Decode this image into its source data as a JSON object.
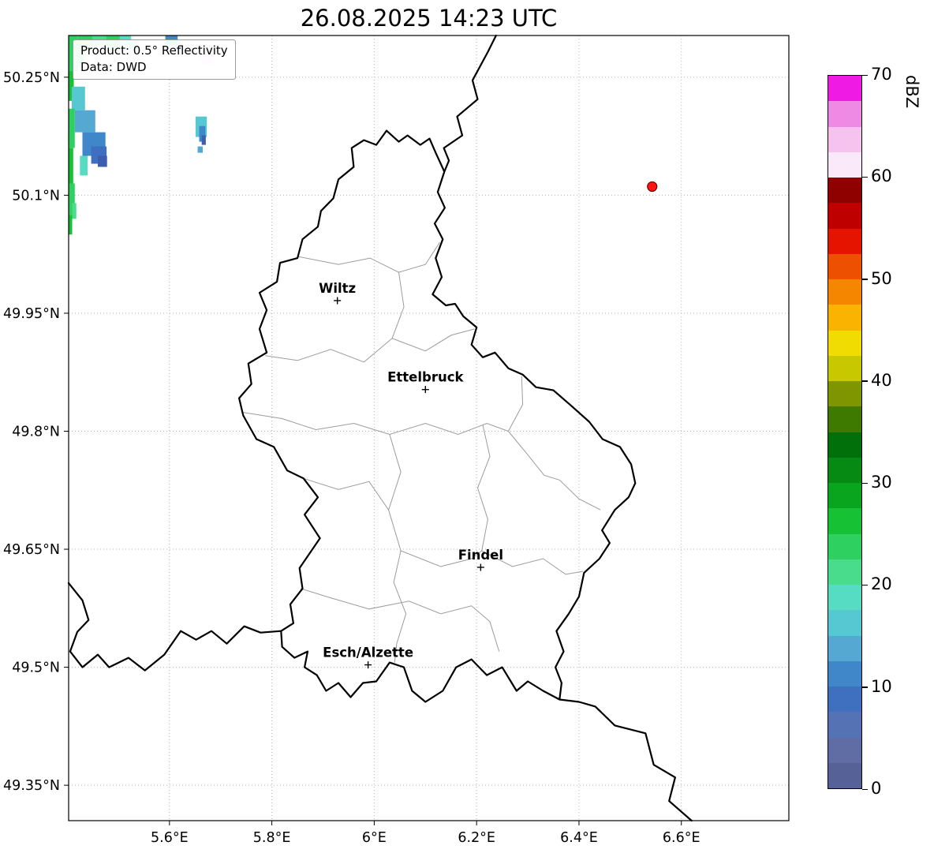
{
  "title": "26.08.2025 14:23 UTC",
  "info_box": {
    "product": "Product: 0.5° Reflectivity",
    "source": "Data: DWD"
  },
  "colorbar": {
    "label": "dBZ",
    "min": 0,
    "max": 70,
    "ticks": [
      0,
      10,
      20,
      30,
      40,
      50,
      60,
      70
    ],
    "segments": [
      {
        "from": 0,
        "to": 2.5,
        "color": "#566198"
      },
      {
        "from": 2.5,
        "to": 5,
        "color": "#5f6da4"
      },
      {
        "from": 5,
        "to": 7.5,
        "color": "#5472b4"
      },
      {
        "from": 7.5,
        "to": 10,
        "color": "#3f6fbf"
      },
      {
        "from": 10,
        "to": 12.5,
        "color": "#3f87c8"
      },
      {
        "from": 12.5,
        "to": 15,
        "color": "#55a8d2"
      },
      {
        "from": 15,
        "to": 17.5,
        "color": "#55c8d2"
      },
      {
        "from": 17.5,
        "to": 20,
        "color": "#55dcc3"
      },
      {
        "from": 20,
        "to": 22.5,
        "color": "#49dc8c"
      },
      {
        "from": 22.5,
        "to": 25,
        "color": "#2ed05f"
      },
      {
        "from": 25,
        "to": 27.5,
        "color": "#16c233"
      },
      {
        "from": 27.5,
        "to": 30,
        "color": "#0aa51f"
      },
      {
        "from": 30,
        "to": 32.5,
        "color": "#068a14"
      },
      {
        "from": 32.5,
        "to": 35,
        "color": "#02700a"
      },
      {
        "from": 35,
        "to": 37.5,
        "color": "#3f7a00"
      },
      {
        "from": 37.5,
        "to": 40,
        "color": "#7f9600"
      },
      {
        "from": 40,
        "to": 42.5,
        "color": "#c8c800"
      },
      {
        "from": 42.5,
        "to": 45,
        "color": "#f0dc00"
      },
      {
        "from": 45,
        "to": 47.5,
        "color": "#fab400"
      },
      {
        "from": 47.5,
        "to": 50,
        "color": "#f58700"
      },
      {
        "from": 50,
        "to": 52.5,
        "color": "#ed5000"
      },
      {
        "from": 52.5,
        "to": 55,
        "color": "#e41400"
      },
      {
        "from": 55,
        "to": 57.5,
        "color": "#be0000"
      },
      {
        "from": 57.5,
        "to": 60,
        "color": "#8f0000"
      },
      {
        "from": 60,
        "to": 62.5,
        "color": "#f9e9f9"
      },
      {
        "from": 62.5,
        "to": 65,
        "color": "#f5c3ee"
      },
      {
        "from": 65,
        "to": 67.5,
        "color": "#ee8ae4"
      },
      {
        "from": 67.5,
        "to": 70,
        "color": "#ef1ae4"
      }
    ]
  },
  "map": {
    "lon_range": [
      5.403,
      6.81
    ],
    "lat_range": [
      49.305,
      50.303
    ],
    "style": {
      "grid": "#b5b5b5",
      "district_border": "#9c9c9c",
      "country_border": "#000000"
    },
    "xticks": [
      {
        "value": 5.6,
        "label": "5.6°E"
      },
      {
        "value": 5.8,
        "label": "5.8°E"
      },
      {
        "value": 6.0,
        "label": "6°E"
      },
      {
        "value": 6.2,
        "label": "6.2°E"
      },
      {
        "value": 6.4,
        "label": "6.4°E"
      },
      {
        "value": 6.6,
        "label": "6.6°E"
      }
    ],
    "yticks": [
      {
        "value": 50.25,
        "label": "50.25°N"
      },
      {
        "value": 50.1,
        "label": "50.1°N"
      },
      {
        "value": 49.95,
        "label": "49.95°N"
      },
      {
        "value": 49.8,
        "label": "49.8°N"
      },
      {
        "value": 49.65,
        "label": "49.65°N"
      },
      {
        "value": 49.5,
        "label": "49.5°N"
      },
      {
        "value": 49.35,
        "label": "49.35°N"
      }
    ],
    "cities": [
      {
        "name": "Wiltz",
        "lon": 5.928,
        "lat": 49.966
      },
      {
        "name": "Ettelbruck",
        "lon": 6.1,
        "lat": 49.853
      },
      {
        "name": "Findel",
        "lon": 6.208,
        "lat": 49.627
      },
      {
        "name": "Esch/Alzette",
        "lon": 5.988,
        "lat": 49.503
      }
    ],
    "radar_site": {
      "lon": 6.543,
      "lat": 50.111,
      "fill": "#ff1414",
      "edge": "#6e0000"
    },
    "borders": {
      "country": [
        [
          [
            6.024,
            50.182
          ],
          [
            6.048,
            50.168
          ],
          [
            6.065,
            50.176
          ],
          [
            6.09,
            50.164
          ],
          [
            6.108,
            50.172
          ],
          [
            6.12,
            50.154
          ],
          [
            6.137,
            50.13
          ],
          [
            6.124,
            50.104
          ],
          [
            6.138,
            50.084
          ],
          [
            6.118,
            50.064
          ],
          [
            6.134,
            50.044
          ],
          [
            6.12,
            50.02
          ],
          [
            6.132,
            49.996
          ],
          [
            6.114,
            49.974
          ],
          [
            6.14,
            49.96
          ],
          [
            6.158,
            49.962
          ],
          [
            6.174,
            49.946
          ],
          [
            6.2,
            49.932
          ],
          [
            6.19,
            49.91
          ],
          [
            6.212,
            49.894
          ],
          [
            6.236,
            49.9
          ],
          [
            6.262,
            49.88
          ],
          [
            6.29,
            49.872
          ],
          [
            6.316,
            49.856
          ],
          [
            6.35,
            49.852
          ],
          [
            6.382,
            49.834
          ],
          [
            6.42,
            49.812
          ],
          [
            6.446,
            49.79
          ],
          [
            6.48,
            49.78
          ],
          [
            6.502,
            49.758
          ],
          [
            6.51,
            49.734
          ],
          [
            6.497,
            49.716
          ],
          [
            6.47,
            49.7
          ],
          [
            6.445,
            49.674
          ],
          [
            6.46,
            49.658
          ],
          [
            6.44,
            49.638
          ],
          [
            6.41,
            49.62
          ],
          [
            6.4,
            49.59
          ],
          [
            6.38,
            49.568
          ],
          [
            6.356,
            49.546
          ],
          [
            6.37,
            49.52
          ],
          [
            6.354,
            49.5
          ],
          [
            6.366,
            49.48
          ],
          [
            6.362,
            49.459
          ],
          [
            6.33,
            49.47
          ],
          [
            6.3,
            49.482
          ],
          [
            6.278,
            49.47
          ],
          [
            6.25,
            49.5
          ],
          [
            6.22,
            49.49
          ],
          [
            6.19,
            49.51
          ],
          [
            6.16,
            49.5
          ],
          [
            6.134,
            49.47
          ],
          [
            6.1,
            49.456
          ],
          [
            6.074,
            49.47
          ],
          [
            6.058,
            49.5
          ],
          [
            6.03,
            49.506
          ],
          [
            6.004,
            49.482
          ],
          [
            5.978,
            49.48
          ],
          [
            5.954,
            49.462
          ],
          [
            5.93,
            49.48
          ],
          [
            5.906,
            49.47
          ],
          [
            5.888,
            49.49
          ],
          [
            5.864,
            49.5
          ],
          [
            5.87,
            49.52
          ],
          [
            5.844,
            49.512
          ],
          [
            5.82,
            49.526
          ],
          [
            5.818,
            49.546
          ],
          [
            5.842,
            49.556
          ],
          [
            5.836,
            49.58
          ],
          [
            5.86,
            49.6
          ],
          [
            5.854,
            49.626
          ],
          [
            5.894,
            49.664
          ],
          [
            5.864,
            49.694
          ],
          [
            5.89,
            49.716
          ],
          [
            5.862,
            49.74
          ],
          [
            5.83,
            49.75
          ],
          [
            5.804,
            49.78
          ],
          [
            5.77,
            49.79
          ],
          [
            5.744,
            49.82
          ],
          [
            5.736,
            49.842
          ],
          [
            5.76,
            49.86
          ],
          [
            5.754,
            49.886
          ],
          [
            5.79,
            49.9
          ],
          [
            5.776,
            49.93
          ],
          [
            5.79,
            49.954
          ],
          [
            5.776,
            49.976
          ],
          [
            5.81,
            49.99
          ],
          [
            5.816,
            50.014
          ],
          [
            5.85,
            50.02
          ],
          [
            5.86,
            50.044
          ],
          [
            5.89,
            50.06
          ],
          [
            5.896,
            50.08
          ],
          [
            5.92,
            50.096
          ],
          [
            5.93,
            50.12
          ],
          [
            5.96,
            50.136
          ],
          [
            5.956,
            50.16
          ],
          [
            5.98,
            50.17
          ],
          [
            6.004,
            50.164
          ],
          [
            6.024,
            50.182
          ]
        ],
        [
          [
            6.238,
            50.303
          ],
          [
            6.222,
            50.282
          ],
          [
            6.192,
            50.246
          ],
          [
            6.202,
            50.222
          ],
          [
            6.162,
            50.2
          ],
          [
            6.172,
            50.176
          ],
          [
            6.136,
            50.16
          ],
          [
            6.146,
            50.144
          ],
          [
            6.137,
            50.13
          ]
        ],
        [
          [
            5.403,
            49.607
          ],
          [
            5.43,
            49.585
          ],
          [
            5.442,
            49.56
          ],
          [
            5.42,
            49.545
          ],
          [
            5.406,
            49.52
          ],
          [
            5.43,
            49.5
          ],
          [
            5.46,
            49.516
          ],
          [
            5.482,
            49.5
          ],
          [
            5.52,
            49.512
          ],
          [
            5.552,
            49.496
          ],
          [
            5.59,
            49.516
          ],
          [
            5.622,
            49.546
          ],
          [
            5.652,
            49.535
          ],
          [
            5.682,
            49.546
          ],
          [
            5.712,
            49.53
          ],
          [
            5.746,
            49.552
          ],
          [
            5.778,
            49.544
          ],
          [
            5.818,
            49.546
          ]
        ],
        [
          [
            6.362,
            49.459
          ],
          [
            6.4,
            49.456
          ],
          [
            6.432,
            49.45
          ],
          [
            6.47,
            49.426
          ],
          [
            6.53,
            49.416
          ],
          [
            6.546,
            49.376
          ],
          [
            6.588,
            49.36
          ],
          [
            6.576,
            49.33
          ],
          [
            6.62,
            49.305
          ]
        ]
      ],
      "districts": [
        [
          [
            5.852,
            50.022
          ],
          [
            5.93,
            50.012
          ],
          [
            5.992,
            50.02
          ],
          [
            6.048,
            50.002
          ],
          [
            6.1,
            50.012
          ],
          [
            6.128,
            50.04
          ]
        ],
        [
          [
            5.787,
            49.896
          ],
          [
            5.85,
            49.89
          ],
          [
            5.915,
            49.904
          ],
          [
            5.98,
            49.888
          ],
          [
            6.035,
            49.918
          ],
          [
            6.1,
            49.902
          ],
          [
            6.15,
            49.922
          ],
          [
            6.196,
            49.93
          ]
        ],
        [
          [
            6.048,
            50.002
          ],
          [
            6.058,
            49.958
          ],
          [
            6.035,
            49.918
          ]
        ],
        [
          [
            5.744,
            49.824
          ],
          [
            5.82,
            49.816
          ],
          [
            5.886,
            49.802
          ],
          [
            5.96,
            49.81
          ],
          [
            6.03,
            49.796
          ],
          [
            6.1,
            49.81
          ],
          [
            6.164,
            49.796
          ],
          [
            6.22,
            49.81
          ],
          [
            6.262,
            49.8
          ]
        ],
        [
          [
            6.262,
            49.8
          ],
          [
            6.29,
            49.834
          ],
          [
            6.288,
            49.87
          ]
        ],
        [
          [
            6.262,
            49.8
          ],
          [
            6.3,
            49.77
          ],
          [
            6.332,
            49.744
          ],
          [
            6.362,
            49.738
          ],
          [
            6.4,
            49.714
          ],
          [
            6.442,
            49.7
          ]
        ],
        [
          [
            6.03,
            49.796
          ],
          [
            6.052,
            49.748
          ],
          [
            6.028,
            49.7
          ],
          [
            6.052,
            49.648
          ],
          [
            6.038,
            49.608
          ],
          [
            6.062,
            49.568
          ],
          [
            6.044,
            49.53
          ],
          [
            6.04,
            49.506
          ]
        ],
        [
          [
            6.212,
            49.808
          ],
          [
            6.226,
            49.768
          ],
          [
            6.202,
            49.728
          ],
          [
            6.222,
            49.688
          ],
          [
            6.21,
            49.648
          ]
        ],
        [
          [
            6.21,
            49.648
          ],
          [
            6.27,
            49.628
          ],
          [
            6.33,
            49.638
          ],
          [
            6.374,
            49.618
          ],
          [
            6.408,
            49.622
          ]
        ],
        [
          [
            6.052,
            49.648
          ],
          [
            6.13,
            49.628
          ],
          [
            6.19,
            49.638
          ],
          [
            6.21,
            49.648
          ]
        ],
        [
          [
            5.856,
            49.6
          ],
          [
            5.916,
            49.588
          ],
          [
            5.99,
            49.574
          ],
          [
            6.068,
            49.584
          ],
          [
            6.13,
            49.568
          ],
          [
            6.19,
            49.578
          ],
          [
            6.226,
            49.558
          ],
          [
            6.244,
            49.52
          ]
        ],
        [
          [
            5.862,
            49.74
          ],
          [
            5.93,
            49.726
          ],
          [
            5.99,
            49.736
          ],
          [
            6.028,
            49.7
          ]
        ]
      ]
    },
    "echoes": [
      [
        5.403,
        50.303,
        0.018,
        0.045,
        "#2ed05f"
      ],
      [
        5.403,
        50.258,
        0.01,
        0.038,
        "#16c233"
      ],
      [
        5.414,
        50.285,
        0.02,
        0.022,
        "#49dc8c"
      ],
      [
        5.421,
        50.303,
        0.03,
        0.018,
        "#2ed05f"
      ],
      [
        5.449,
        50.303,
        0.028,
        0.012,
        "#49dc8c"
      ],
      [
        5.477,
        50.303,
        0.026,
        0.02,
        "#2ed05f"
      ],
      [
        5.503,
        50.303,
        0.022,
        0.013,
        "#55dcc3"
      ],
      [
        5.52,
        50.296,
        0.018,
        0.01,
        "#49dc8c"
      ],
      [
        5.592,
        50.303,
        0.024,
        0.012,
        "#3f87c8"
      ],
      [
        5.612,
        50.294,
        0.012,
        0.008,
        "#55a8d2"
      ],
      [
        5.409,
        50.238,
        0.026,
        0.03,
        "#55c8d2"
      ],
      [
        5.415,
        50.208,
        0.04,
        0.028,
        "#55a8d2"
      ],
      [
        5.43,
        50.18,
        0.045,
        0.03,
        "#3f87c8"
      ],
      [
        5.447,
        50.162,
        0.03,
        0.022,
        "#3f6fbf"
      ],
      [
        5.46,
        50.15,
        0.018,
        0.014,
        "#3b5fae"
      ],
      [
        5.425,
        50.15,
        0.015,
        0.025,
        "#55dcc3"
      ],
      [
        5.403,
        50.21,
        0.012,
        0.05,
        "#2ed05f"
      ],
      [
        5.403,
        50.16,
        0.009,
        0.045,
        "#16c233"
      ],
      [
        5.403,
        50.115,
        0.012,
        0.04,
        "#2ed05f"
      ],
      [
        5.41,
        50.09,
        0.008,
        0.02,
        "#49dc8c"
      ],
      [
        5.403,
        50.075,
        0.007,
        0.025,
        "#16c233"
      ],
      [
        5.651,
        50.2,
        0.022,
        0.026,
        "#55c8d2"
      ],
      [
        5.658,
        50.188,
        0.012,
        0.02,
        "#3f87c8"
      ],
      [
        5.663,
        50.176,
        0.008,
        0.012,
        "#3b5fae"
      ],
      [
        5.655,
        50.162,
        0.01,
        0.008,
        "#55a8d2"
      ],
      [
        5.657,
        50.29,
        0.03,
        0.02,
        "#f0e3f2"
      ],
      [
        5.666,
        50.278,
        0.018,
        0.012,
        "#e8d4ec"
      ]
    ]
  }
}
